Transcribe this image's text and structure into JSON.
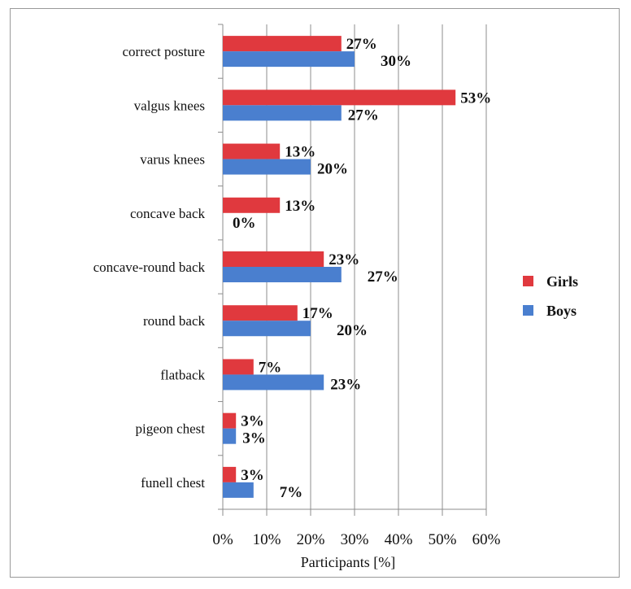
{
  "chart_data": {
    "type": "bar",
    "orientation": "horizontal",
    "categories": [
      "correct posture",
      "valgus knees",
      "varus knees",
      "concave back",
      "concave-round back",
      "round back",
      "flatback",
      "pigeon chest",
      "funell chest"
    ],
    "series": [
      {
        "name": "Girls",
        "color": "#e0393e",
        "values": [
          27,
          53,
          13,
          13,
          23,
          17,
          7,
          3,
          3
        ],
        "labels": [
          "27%",
          "53%",
          "13%",
          "13%",
          "23%",
          "17%",
          "7%",
          "3%",
          "3%"
        ]
      },
      {
        "name": "Boys",
        "color": "#4a7fcf",
        "values": [
          30,
          27,
          20,
          0,
          27,
          20,
          23,
          3,
          7
        ],
        "labels": [
          "30%",
          "27%",
          "20%",
          "0%",
          "27%",
          "20%",
          "23%",
          "3%",
          "7%"
        ]
      }
    ],
    "xlim": [
      0,
      60
    ],
    "xticks": [
      0,
      10,
      20,
      30,
      40,
      50,
      60
    ],
    "xtick_labels": [
      "0%",
      "10%",
      "20%",
      "30%",
      "40%",
      "50%",
      "60%"
    ],
    "xlabel": "Participants [%]",
    "grid": "vertical",
    "legend": "right"
  }
}
